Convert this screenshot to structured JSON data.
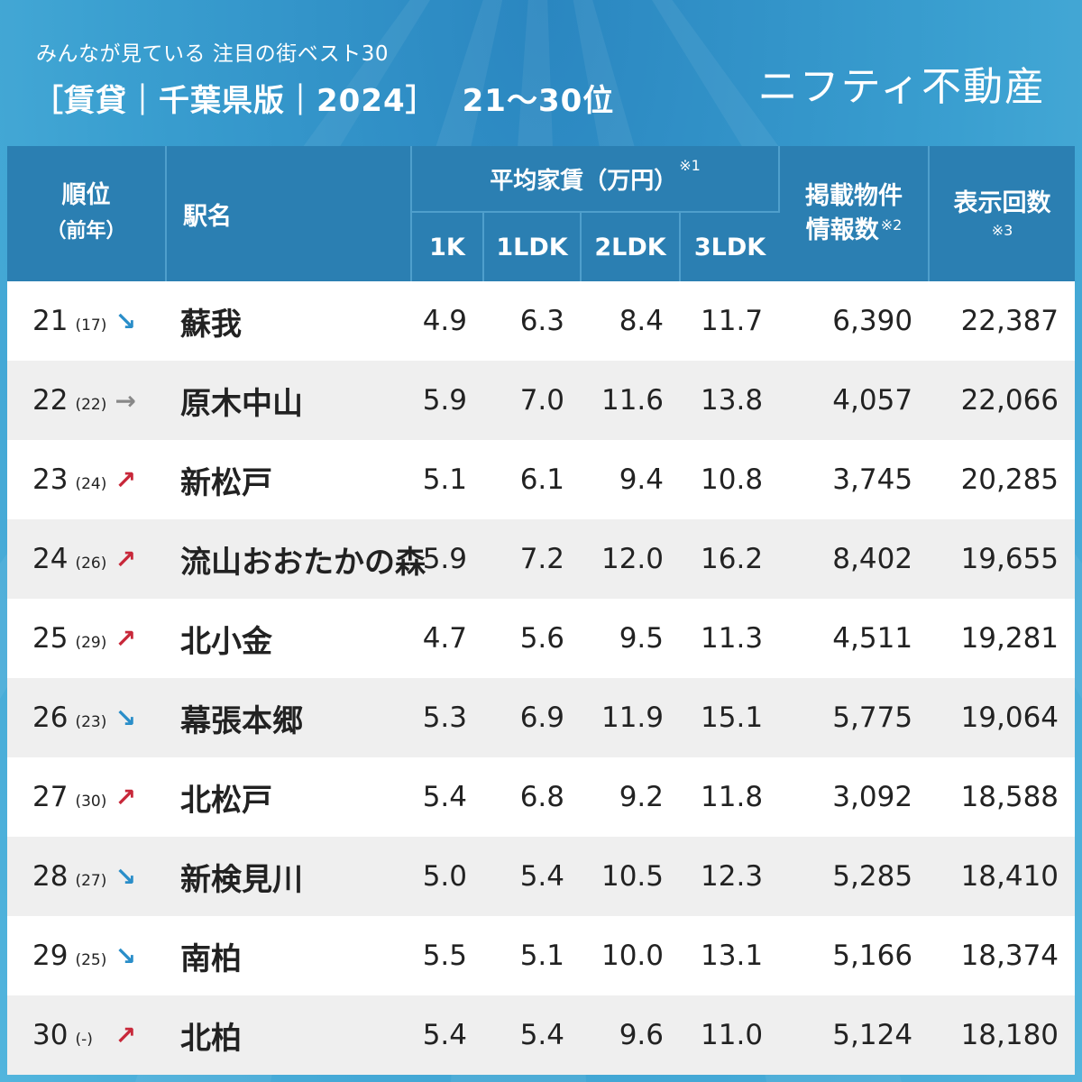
{
  "header": {
    "subtitle": "みんなが見ている 注目の街ベスト30",
    "title": "［賃貸｜千葉県版｜2024］",
    "range": "21〜30位",
    "logo": "ニフティ不動産"
  },
  "table": {
    "headers": {
      "rank": "順位",
      "rank_sub": "（前年）",
      "station": "駅名",
      "rent_group": "平均家賃（万円）",
      "rent_note": "※1",
      "sizes": [
        "1K",
        "1LDK",
        "2LDK",
        "3LDK"
      ],
      "listings_line1": "掲載物件",
      "listings_line2": "情報数",
      "listings_note": "※2",
      "views": "表示回数",
      "views_note": "※3"
    },
    "rows": [
      {
        "rank": "21",
        "prev": "(17)",
        "trend": "down",
        "arrow": "↘",
        "station": "蘇我",
        "k1": "4.9",
        "ldk1": "6.3",
        "ldk2": "8.4",
        "ldk3": "11.7",
        "listings": "6,390",
        "views": "22,387"
      },
      {
        "rank": "22",
        "prev": "(22)",
        "trend": "flat",
        "arrow": "→",
        "station": "原木中山",
        "k1": "5.9",
        "ldk1": "7.0",
        "ldk2": "11.6",
        "ldk3": "13.8",
        "listings": "4,057",
        "views": "22,066"
      },
      {
        "rank": "23",
        "prev": "(24)",
        "trend": "up",
        "arrow": "↗",
        "station": "新松戸",
        "k1": "5.1",
        "ldk1": "6.1",
        "ldk2": "9.4",
        "ldk3": "10.8",
        "listings": "3,745",
        "views": "20,285"
      },
      {
        "rank": "24",
        "prev": "(26)",
        "trend": "up",
        "arrow": "↗",
        "station": "流山おおたかの森",
        "k1": "5.9",
        "ldk1": "7.2",
        "ldk2": "12.0",
        "ldk3": "16.2",
        "listings": "8,402",
        "views": "19,655"
      },
      {
        "rank": "25",
        "prev": "(29)",
        "trend": "up",
        "arrow": "↗",
        "station": "北小金",
        "k1": "4.7",
        "ldk1": "5.6",
        "ldk2": "9.5",
        "ldk3": "11.3",
        "listings": "4,511",
        "views": "19,281"
      },
      {
        "rank": "26",
        "prev": "(23)",
        "trend": "down",
        "arrow": "↘",
        "station": "幕張本郷",
        "k1": "5.3",
        "ldk1": "6.9",
        "ldk2": "11.9",
        "ldk3": "15.1",
        "listings": "5,775",
        "views": "19,064"
      },
      {
        "rank": "27",
        "prev": "(30)",
        "trend": "up",
        "arrow": "↗",
        "station": "北松戸",
        "k1": "5.4",
        "ldk1": "6.8",
        "ldk2": "9.2",
        "ldk3": "11.8",
        "listings": "3,092",
        "views": "18,588"
      },
      {
        "rank": "28",
        "prev": "(27)",
        "trend": "down",
        "arrow": "↘",
        "station": "新検見川",
        "k1": "5.0",
        "ldk1": "5.4",
        "ldk2": "10.5",
        "ldk3": "12.3",
        "listings": "5,285",
        "views": "18,410"
      },
      {
        "rank": "29",
        "prev": "(25)",
        "trend": "down",
        "arrow": "↘",
        "station": "南柏",
        "k1": "5.5",
        "ldk1": "5.1",
        "ldk2": "10.0",
        "ldk3": "13.1",
        "listings": "5,166",
        "views": "18,374"
      },
      {
        "rank": "30",
        "prev": "(-)",
        "trend": "up",
        "arrow": "↗",
        "station": "北柏",
        "k1": "5.4",
        "ldk1": "5.4",
        "ldk2": "9.6",
        "ldk3": "11.0",
        "listings": "5,124",
        "views": "18,180"
      }
    ]
  }
}
